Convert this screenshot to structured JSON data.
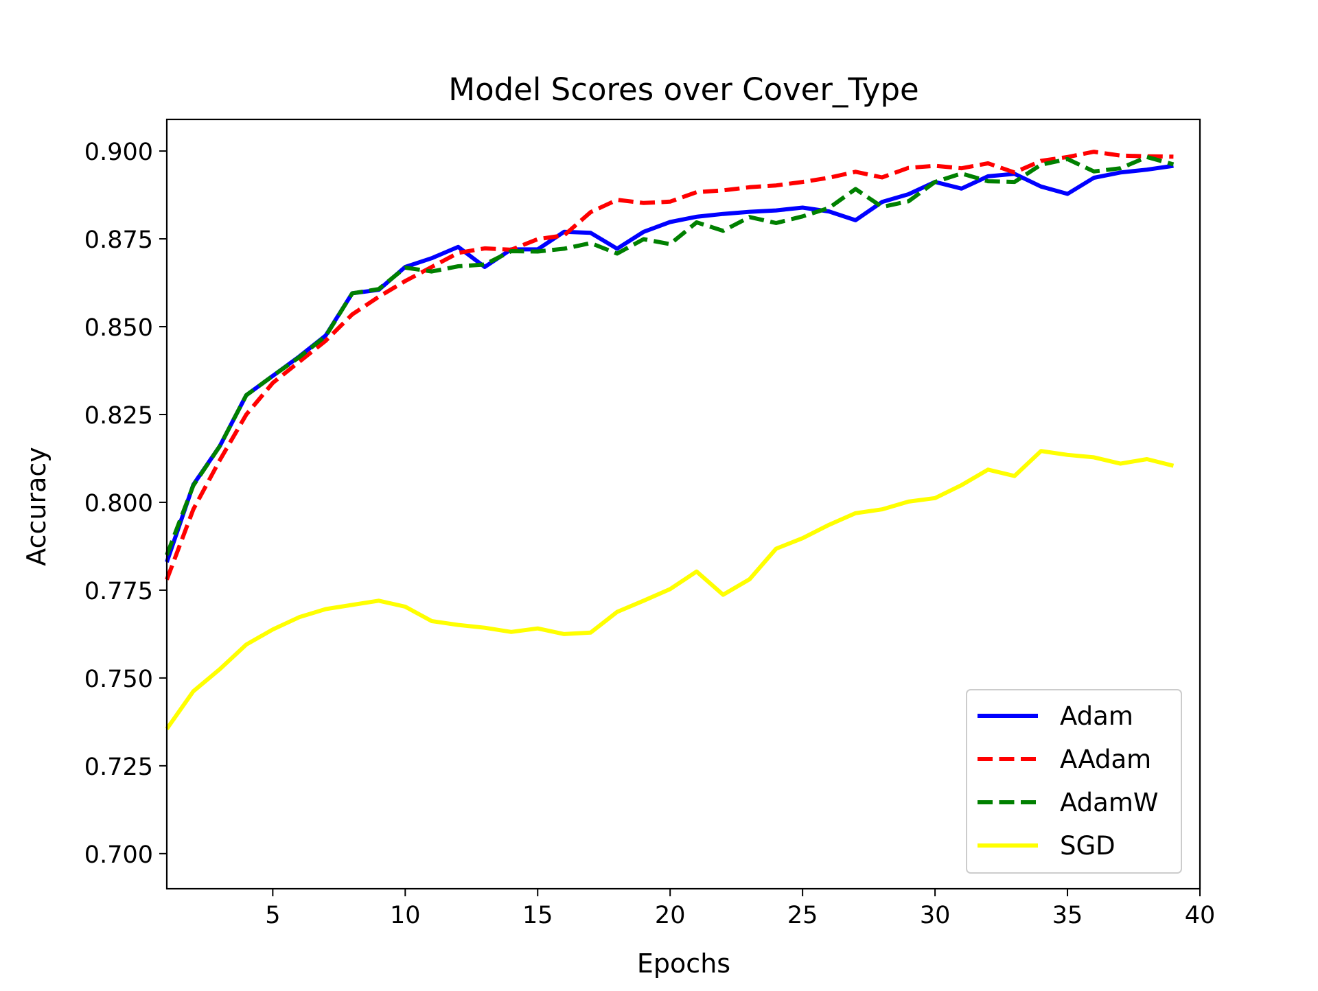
{
  "chart_data": {
    "type": "line",
    "title": "Model Scores over Cover_Type",
    "xlabel": "Epochs",
    "ylabel": "Accuracy",
    "xlim": [
      1,
      40
    ],
    "ylim": [
      0.69,
      0.909
    ],
    "xticks": [
      5,
      10,
      15,
      20,
      25,
      30,
      35,
      40
    ],
    "yticks": [
      0.7,
      0.725,
      0.75,
      0.775,
      0.8,
      0.825,
      0.85,
      0.875,
      0.9
    ],
    "xtick_labels": [
      "5",
      "10",
      "15",
      "20",
      "25",
      "30",
      "35",
      "40"
    ],
    "ytick_labels": [
      "0.700",
      "0.725",
      "0.750",
      "0.775",
      "0.800",
      "0.825",
      "0.850",
      "0.875",
      "0.900"
    ],
    "grid": false,
    "legend_position": "lower-right",
    "x": [
      1,
      2,
      3,
      4,
      5,
      6,
      7,
      8,
      9,
      10,
      11,
      12,
      13,
      14,
      15,
      16,
      17,
      18,
      19,
      20,
      21,
      22,
      23,
      24,
      25,
      26,
      27,
      28,
      29,
      30,
      31,
      32,
      33,
      34,
      35,
      36,
      37,
      38,
      39
    ],
    "series": [
      {
        "name": "Adam",
        "color": "#0000ff",
        "dash": "solid",
        "values": [
          0.783,
          0.805,
          0.816,
          0.8305,
          0.836,
          0.8415,
          0.8475,
          0.8595,
          0.8605,
          0.867,
          0.8695,
          0.8727,
          0.867,
          0.872,
          0.872,
          0.877,
          0.8767,
          0.8722,
          0.877,
          0.8798,
          0.8813,
          0.8821,
          0.8827,
          0.8831,
          0.8839,
          0.8828,
          0.8803,
          0.8855,
          0.8877,
          0.8912,
          0.8893,
          0.8928,
          0.8935,
          0.8899,
          0.8878,
          0.8924,
          0.8939,
          0.8947,
          0.8958
        ]
      },
      {
        "name": "AAdam",
        "color": "#ff0000",
        "dash": "dashed",
        "values": [
          0.778,
          0.798,
          0.812,
          0.825,
          0.834,
          0.84,
          0.846,
          0.8535,
          0.8585,
          0.863,
          0.867,
          0.871,
          0.8723,
          0.8719,
          0.8749,
          0.876,
          0.8826,
          0.8861,
          0.8852,
          0.8856,
          0.8883,
          0.8888,
          0.8897,
          0.8902,
          0.8912,
          0.8924,
          0.8941,
          0.8925,
          0.8952,
          0.8958,
          0.8951,
          0.8965,
          0.8939,
          0.8972,
          0.8983,
          0.8998,
          0.8987,
          0.8985,
          0.8984
        ]
      },
      {
        "name": "AdamW",
        "color": "#008000",
        "dash": "dashed",
        "values": [
          0.785,
          0.8048,
          0.816,
          0.8305,
          0.836,
          0.8413,
          0.8473,
          0.8595,
          0.8607,
          0.8668,
          0.8657,
          0.8672,
          0.8677,
          0.8715,
          0.8714,
          0.8722,
          0.8738,
          0.8708,
          0.8749,
          0.8735,
          0.8797,
          0.8773,
          0.8812,
          0.8795,
          0.8814,
          0.8838,
          0.8892,
          0.8841,
          0.8857,
          0.8912,
          0.8936,
          0.8914,
          0.8912,
          0.8961,
          0.8977,
          0.8942,
          0.8951,
          0.8983,
          0.8962
        ]
      },
      {
        "name": "SGD",
        "color": "#ffff00",
        "dash": "solid",
        "values": [
          0.7355,
          0.7462,
          0.7525,
          0.7595,
          0.7638,
          0.7673,
          0.7696,
          0.7708,
          0.772,
          0.7703,
          0.7662,
          0.7651,
          0.7643,
          0.7631,
          0.7641,
          0.7625,
          0.7629,
          0.7688,
          0.772,
          0.7753,
          0.7803,
          0.7737,
          0.7781,
          0.7868,
          0.7898,
          0.7936,
          0.7969,
          0.798,
          0.8002,
          0.8012,
          0.8049,
          0.8093,
          0.8075,
          0.8146,
          0.8135,
          0.8128,
          0.811,
          0.8123,
          0.8104
        ]
      }
    ]
  }
}
